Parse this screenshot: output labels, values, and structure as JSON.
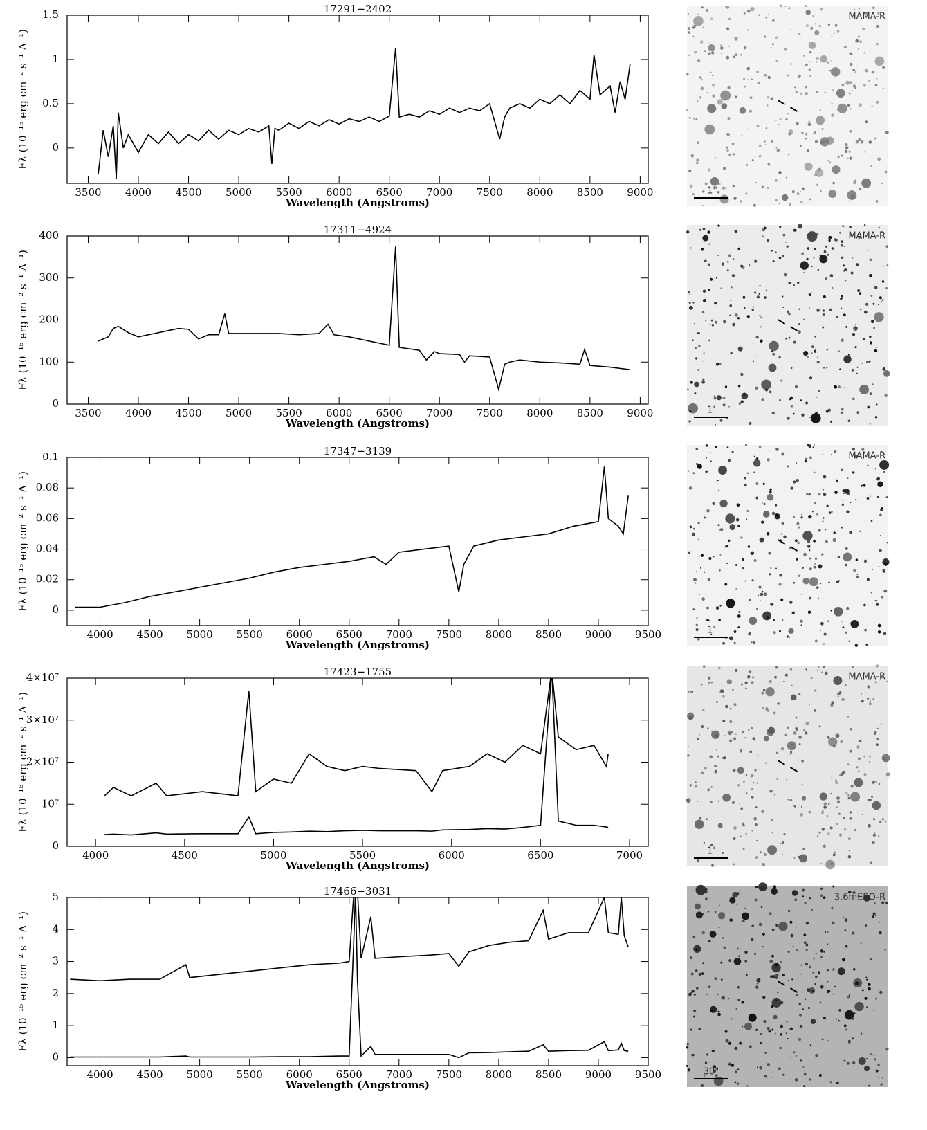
{
  "chart_data": [
    {
      "type": "line",
      "title": "17291−2402",
      "x_label": "Wavelength (Angstroms)",
      "y_label": "Fλ (10⁻¹⁵ erg cm⁻² s⁻¹ A⁻¹)",
      "xlim": [
        3290,
        9080
      ],
      "xticks": [
        3500,
        4000,
        4500,
        5000,
        5500,
        6000,
        6500,
        7000,
        7500,
        8000,
        8500,
        9000
      ],
      "ylim": [
        -0.4,
        1.5
      ],
      "yticks": [
        0,
        0.5,
        1,
        1.5
      ],
      "x": [
        3600,
        3650,
        3700,
        3750,
        3780,
        3800,
        3850,
        3900,
        4000,
        4100,
        4200,
        4300,
        4400,
        4500,
        4600,
        4700,
        4800,
        4900,
        5000,
        5100,
        5200,
        5300,
        5330,
        5360,
        5400,
        5500,
        5600,
        5700,
        5800,
        5900,
        6000,
        6100,
        6200,
        6300,
        6400,
        6500,
        6563,
        6600,
        6700,
        6800,
        6900,
        7000,
        7100,
        7200,
        7300,
        7400,
        7500,
        7600,
        7650,
        7700,
        7800,
        7900,
        8000,
        8100,
        8200,
        8300,
        8400,
        8500,
        8540,
        8600,
        8700,
        8750,
        8800,
        8850,
        8900
      ],
      "series": [
        {
          "color": "#000000",
          "values": [
            -0.3,
            0.2,
            -0.1,
            0.25,
            -0.35,
            0.4,
            0.0,
            0.15,
            -0.05,
            0.15,
            0.05,
            0.18,
            0.05,
            0.15,
            0.08,
            0.2,
            0.1,
            0.2,
            0.15,
            0.22,
            0.18,
            0.25,
            -0.18,
            0.22,
            0.2,
            0.28,
            0.22,
            0.3,
            0.25,
            0.32,
            0.27,
            0.33,
            0.3,
            0.35,
            0.3,
            0.36,
            1.13,
            0.35,
            0.38,
            0.35,
            0.42,
            0.38,
            0.45,
            0.4,
            0.45,
            0.42,
            0.5,
            0.1,
            0.35,
            0.45,
            0.5,
            0.45,
            0.55,
            0.5,
            0.6,
            0.5,
            0.65,
            0.55,
            1.05,
            0.6,
            0.7,
            0.4,
            0.75,
            0.55,
            0.95
          ]
        }
      ]
    },
    {
      "type": "line",
      "title": "17311−4924",
      "x_label": "Wavelength (Angstroms)",
      "y_label": "Fλ (10⁻¹⁵ erg cm⁻² s⁻¹ A⁻¹)",
      "xlim": [
        3290,
        9080
      ],
      "xticks": [
        3500,
        4000,
        4500,
        5000,
        5500,
        6000,
        6500,
        7000,
        7500,
        8000,
        8500,
        9000
      ],
      "ylim": [
        0,
        400
      ],
      "yticks": [
        0,
        100,
        200,
        300,
        400
      ],
      "x": [
        3600,
        3700,
        3750,
        3800,
        3900,
        4000,
        4100,
        4200,
        4300,
        4400,
        4500,
        4600,
        4700,
        4800,
        4861,
        4900,
        5000,
        5200,
        5400,
        5600,
        5800,
        5890,
        5950,
        6100,
        6300,
        6500,
        6563,
        6600,
        6800,
        6870,
        6950,
        7000,
        7200,
        7250,
        7300,
        7500,
        7590,
        7650,
        7700,
        7800,
        8000,
        8200,
        8400,
        8446,
        8500,
        8700,
        8800,
        8900
      ],
      "series": [
        {
          "color": "#000000",
          "values": [
            150,
            160,
            180,
            185,
            170,
            160,
            165,
            170,
            175,
            180,
            178,
            155,
            165,
            165,
            215,
            168,
            168,
            168,
            168,
            165,
            168,
            190,
            165,
            160,
            150,
            140,
            375,
            135,
            128,
            105,
            125,
            120,
            118,
            100,
            115,
            112,
            35,
            95,
            100,
            105,
            100,
            98,
            95,
            130,
            92,
            88,
            85,
            82
          ]
        }
      ]
    },
    {
      "type": "line",
      "title": "17347−3139",
      "x_label": "Wavelength (Angstroms)",
      "y_label": "Fλ (10⁻¹⁵ erg cm⁻² s⁻¹ A⁻¹)",
      "xlim": [
        3670,
        9500
      ],
      "xticks": [
        4000,
        4500,
        5000,
        5500,
        6000,
        6500,
        7000,
        7500,
        8000,
        8500,
        9000,
        9500
      ],
      "ylim": [
        -0.01,
        0.1
      ],
      "yticks": [
        0,
        0.02,
        0.04,
        0.06,
        0.08,
        0.1
      ],
      "x": [
        3750,
        4000,
        4250,
        4500,
        4750,
        5000,
        5250,
        5500,
        5750,
        6000,
        6250,
        6500,
        6750,
        6870,
        7000,
        7250,
        7500,
        7600,
        7650,
        7750,
        8000,
        8250,
        8500,
        8750,
        9000,
        9060,
        9100,
        9200,
        9250,
        9300
      ],
      "series": [
        {
          "color": "#000000",
          "values": [
            0.002,
            0.002,
            0.005,
            0.009,
            0.012,
            0.015,
            0.018,
            0.021,
            0.025,
            0.028,
            0.03,
            0.032,
            0.035,
            0.03,
            0.038,
            0.04,
            0.042,
            0.012,
            0.03,
            0.042,
            0.046,
            0.048,
            0.05,
            0.055,
            0.058,
            0.094,
            0.06,
            0.055,
            0.05,
            0.075
          ]
        }
      ]
    },
    {
      "type": "line",
      "title": "17423−1755",
      "x_label": "Wavelength (Angstroms)",
      "y_label": "Fλ (10⁻¹⁵ erg cm⁻² s⁻¹ A⁻¹)",
      "xlim": [
        3840,
        7105
      ],
      "xticks": [
        4000,
        4500,
        5000,
        5500,
        6000,
        6500,
        7000
      ],
      "ylim": [
        0,
        40000000
      ],
      "yticks": [
        0,
        {
          "value": 10000000,
          "label": "10⁷"
        },
        {
          "value": 20000000,
          "label": "2×10⁷"
        },
        {
          "value": 30000000,
          "label": "3×10⁷"
        },
        {
          "value": 40000000,
          "label": "4×10⁷"
        }
      ],
      "x": [
        4050,
        4100,
        4200,
        4340,
        4400,
        4600,
        4800,
        4861,
        4900,
        5000,
        5100,
        5200,
        5300,
        5400,
        5500,
        5600,
        5800,
        5890,
        5950,
        6100,
        6200,
        6300,
        6400,
        6500,
        6563,
        6600,
        6700,
        6800,
        6870,
        6880
      ],
      "series": [
        {
          "color": "#000000",
          "values": [
            12000000,
            14000000,
            12000000,
            15000000,
            12000000,
            13000000,
            12000000,
            37000000,
            13000000,
            16000000,
            15000000,
            22000000,
            19000000,
            18000000,
            19000000,
            18500000,
            18000000,
            13000000,
            18000000,
            19000000,
            22000000,
            20000000,
            24000000,
            22000000,
            42000000,
            26000000,
            23000000,
            24000000,
            19000000,
            22000000
          ]
        },
        {
          "color": "#000000",
          "values": [
            2800000,
            2900000,
            2700000,
            3200000,
            2900000,
            3000000,
            3000000,
            7000000,
            3000000,
            3300000,
            3400000,
            3600000,
            3500000,
            3700000,
            3800000,
            3700000,
            3700000,
            3600000,
            3900000,
            4000000,
            4200000,
            4100000,
            4500000,
            5000000,
            42000000,
            6000000,
            5000000,
            5000000,
            4600000,
            4500000
          ]
        }
      ]
    },
    {
      "type": "line",
      "title": "17466−3031",
      "x_label": "Wavelength (Angstroms)",
      "y_label": "Fλ (10⁻¹⁵ erg cm⁻² s⁻¹ A⁻¹)",
      "xlim": [
        3670,
        9500
      ],
      "xticks": [
        4000,
        4500,
        5000,
        5500,
        6000,
        6500,
        7000,
        7500,
        8000,
        8500,
        9000,
        9500
      ],
      "ylim": [
        -0.25,
        5
      ],
      "yticks": [
        0,
        1,
        2,
        3,
        4,
        5
      ],
      "x": [
        3700,
        4000,
        4300,
        4600,
        4861,
        4900,
        5200,
        5500,
        5800,
        6100,
        6400,
        6500,
        6548,
        6563,
        6583,
        6620,
        6717,
        6760,
        7000,
        7300,
        7500,
        7600,
        7700,
        7900,
        8100,
        8300,
        8446,
        8500,
        8700,
        8900,
        9060,
        9100,
        9200,
        9230,
        9260,
        9300
      ],
      "series": [
        {
          "color": "#000000",
          "values": [
            2.45,
            2.4,
            2.45,
            2.45,
            2.9,
            2.5,
            2.6,
            2.7,
            2.8,
            2.9,
            2.95,
            3.0,
            5.2,
            5.2,
            5.2,
            3.1,
            4.4,
            3.1,
            3.15,
            3.2,
            3.25,
            2.85,
            3.3,
            3.5,
            3.6,
            3.65,
            4.6,
            3.7,
            3.9,
            3.9,
            5.0,
            3.9,
            3.85,
            5.0,
            3.8,
            3.45
          ]
        },
        {
          "color": "#000000",
          "values": [
            0.02,
            0.02,
            0.02,
            0.02,
            0.05,
            0.02,
            0.02,
            0.02,
            0.03,
            0.03,
            0.05,
            0.05,
            3.8,
            5.2,
            2.4,
            0.05,
            0.35,
            0.1,
            0.1,
            0.1,
            0.1,
            0.0,
            0.15,
            0.16,
            0.18,
            0.2,
            0.4,
            0.2,
            0.22,
            0.23,
            0.5,
            0.22,
            0.24,
            0.45,
            0.22,
            0.2
          ]
        }
      ]
    }
  ],
  "finder_charts": [
    {
      "label": "MAMA-R",
      "scale": "1'"
    },
    {
      "label": "MAMA-R",
      "scale": "1'"
    },
    {
      "label": "MAMA-R",
      "scale": "1'"
    },
    {
      "label": "MAMA-R",
      "scale": "1'"
    },
    {
      "label": "3.6mESO-R",
      "scale": "30\""
    }
  ]
}
